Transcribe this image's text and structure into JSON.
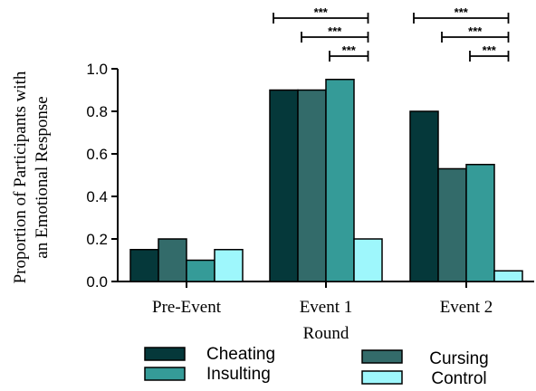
{
  "chart_data": {
    "type": "bar",
    "categories": [
      "Pre-Event",
      "Event 1",
      "Event 2"
    ],
    "series": [
      {
        "name": "Cheating",
        "color": "#05383a",
        "values": [
          0.15,
          0.9,
          0.8
        ]
      },
      {
        "name": "Cursing",
        "color": "#336b6a",
        "values": [
          0.2,
          0.9,
          0.53
        ]
      },
      {
        "name": "Insulting",
        "color": "#359b98",
        "values": [
          0.1,
          0.95,
          0.55
        ]
      },
      {
        "name": "Control",
        "color": "#9ef7fc",
        "values": [
          0.15,
          0.2,
          0.05
        ]
      }
    ],
    "xlabel": "Round",
    "ylabel_lines": [
      "Proportion of Participants with",
      "an Emotional Response"
    ],
    "ylim": [
      0,
      1.0
    ],
    "yticks": [
      "0.0",
      "0.2",
      "0.4",
      "0.6",
      "0.8",
      "1.0"
    ],
    "ytick_values": [
      0,
      0.2,
      0.4,
      0.6,
      0.8,
      1.0
    ],
    "legend_placement": "bottom",
    "grid": false,
    "significance": [
      {
        "category": 1,
        "from_series": 0,
        "to_series": 3,
        "label": "***"
      },
      {
        "category": 1,
        "from_series": 1,
        "to_series": 3,
        "label": "***"
      },
      {
        "category": 1,
        "from_series": 2,
        "to_series": 3,
        "label": "***"
      },
      {
        "category": 2,
        "from_series": 0,
        "to_series": 3,
        "label": "***"
      },
      {
        "category": 2,
        "from_series": 1,
        "to_series": 3,
        "label": "***"
      },
      {
        "category": 2,
        "from_series": 2,
        "to_series": 3,
        "label": "***"
      }
    ]
  }
}
